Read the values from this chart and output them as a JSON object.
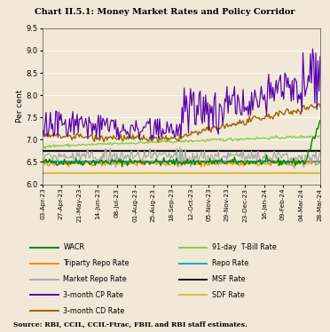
{
  "title": "Chart II.5.1: Money Market Rates and Policy Corridor",
  "ylabel": "Per cent",
  "source": "Source: RBI, CCIL, CCIL-Ftrac, FBIL and RBI staff estimates.",
  "ylim": [
    6.0,
    9.5
  ],
  "yticks": [
    6.0,
    6.5,
    7.0,
    7.5,
    8.0,
    8.5,
    9.0,
    9.5
  ],
  "background_color": "#f2e8d8",
  "plot_bg_color": "#f2e8d8",
  "x_labels": [
    "03-Apr-23",
    "27-Apr-23",
    "21-May-23",
    "14-Jun-23",
    "08-Jul-23",
    "01-Aug-23",
    "25-Aug-23",
    "18-Sep-23",
    "12-Oct-23",
    "05-Nov-23",
    "29-Nov-23",
    "23-Dec-23",
    "16-Jan-24",
    "09-Feb-24",
    "04-Mar-24",
    "28-Mar-24"
  ],
  "n_points": 260,
  "repo_rate": 6.5,
  "msf_rate": 6.75,
  "sdf_rate": 6.25,
  "wacr_color": "#008800",
  "tbill_color": "#88cc44",
  "triparty_color": "#ff8800",
  "repo_color": "#00aacc",
  "mrepo_color": "#aaaaaa",
  "msf_color": "#111111",
  "cp_color": "#5500aa",
  "sdf_color": "#ddbb44",
  "cd_color": "#996600",
  "legend_left": [
    "WACR",
    "Triparty Repo Rate",
    "Market Repo Rate",
    "3-month CP Rate",
    "3-month CD Rate"
  ],
  "legend_right": [
    "91-day  T-Bill Rate",
    "Repo Rate",
    "MSF Rate",
    "SDF Rate"
  ]
}
